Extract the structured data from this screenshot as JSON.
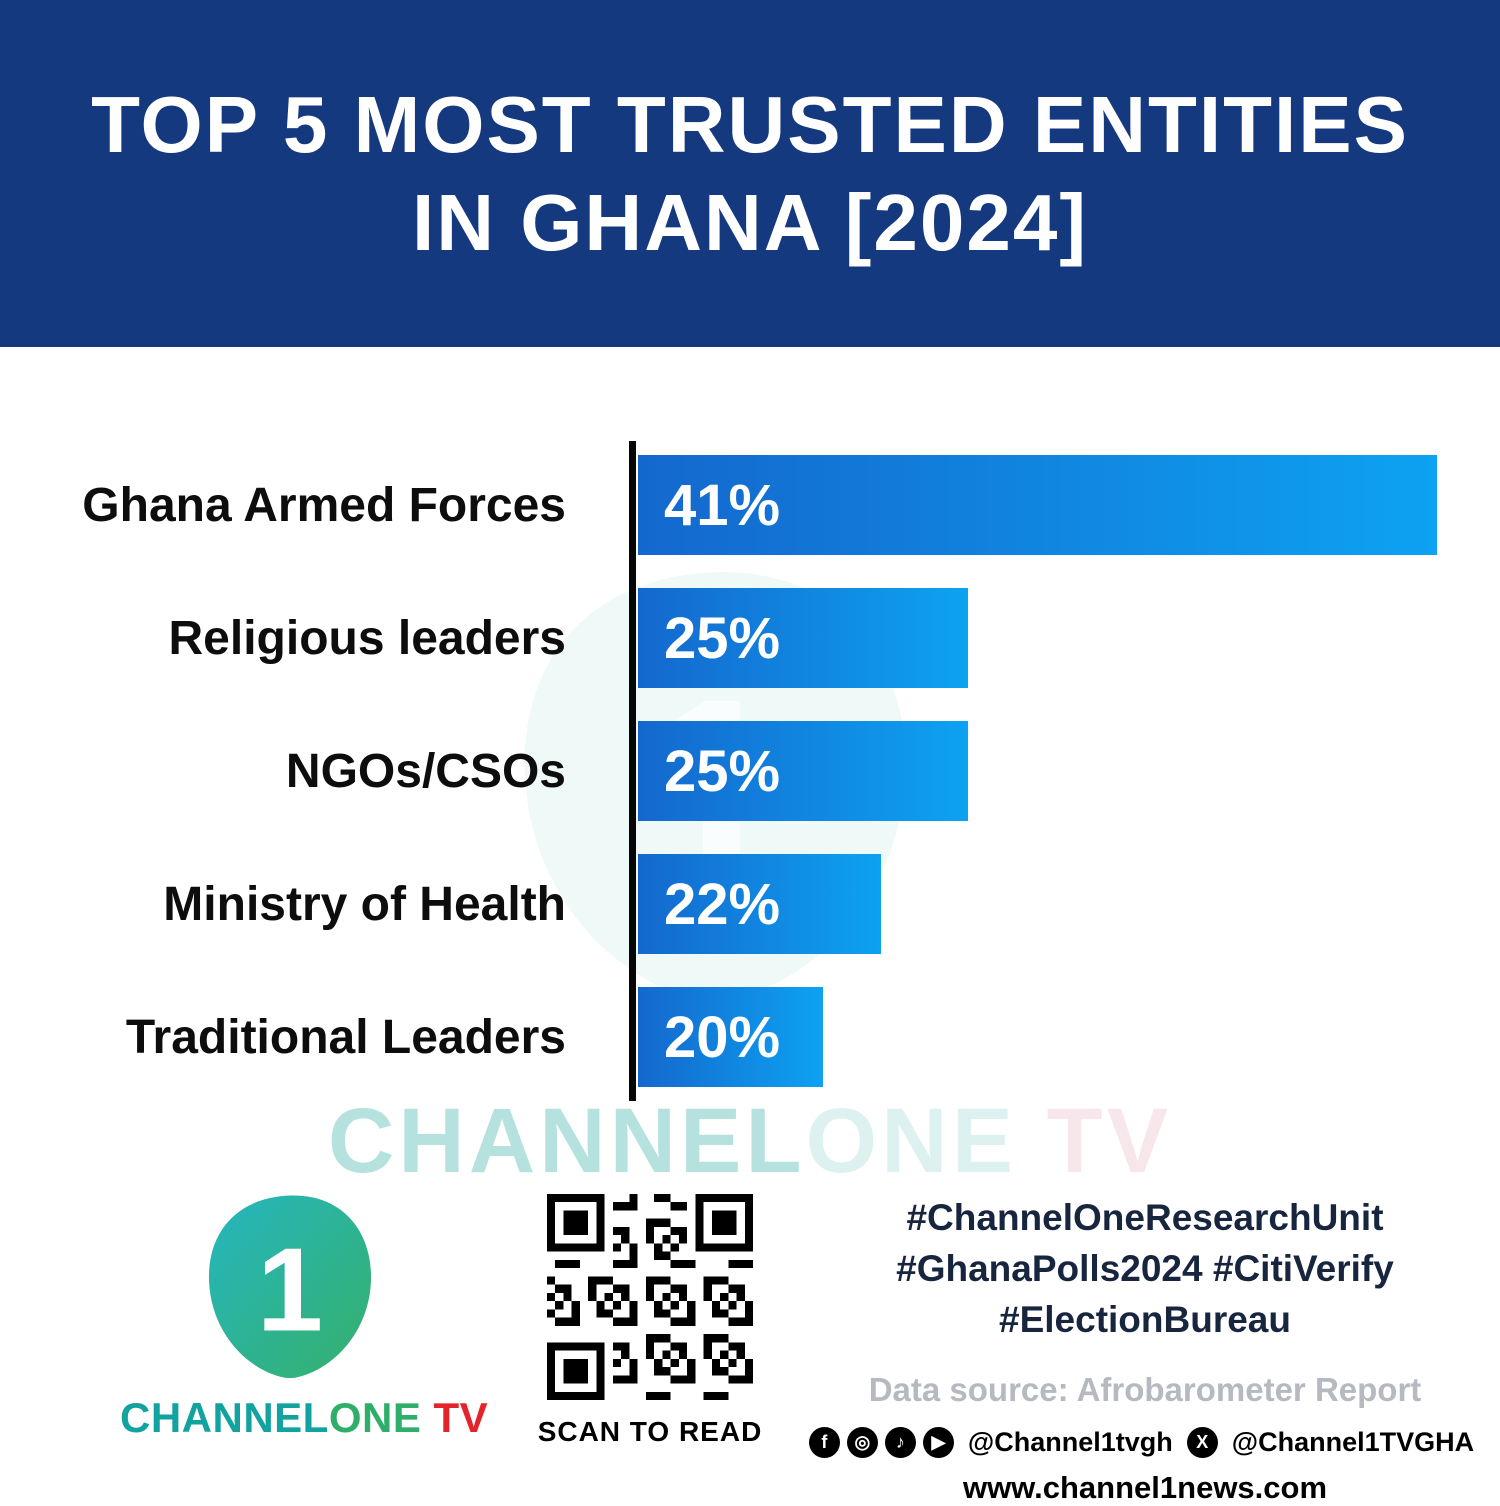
{
  "title": {
    "line1": "TOP 5 MOST TRUSTED ENTITIES",
    "line2": "IN GHANA [2024]"
  },
  "chart_data": {
    "type": "bar",
    "orientation": "horizontal",
    "title": "Top 5 Most Trusted Entities in Ghana [2024]",
    "categories": [
      "Ghana Armed Forces",
      "Religious leaders",
      "NGOs/CSOs",
      "Ministry of Health",
      "Traditional Leaders"
    ],
    "values": [
      41,
      25,
      25,
      22,
      20
    ],
    "value_labels": [
      "41%",
      "25%",
      "25%",
      "22%",
      "20%"
    ],
    "xlim": [
      0,
      45
    ],
    "grid": false,
    "legend": false,
    "bar_display_pct_of_area": [
      92.7,
      38.3,
      38.3,
      28.2,
      21.5
    ],
    "bar_gradient": [
      "#1468cd",
      "#0da2f2"
    ]
  },
  "watermark": {
    "part1": "CHANNEL",
    "part2": "ONE",
    "part3": " TV"
  },
  "brand": {
    "channel": "CHANNEL",
    "one": "ONE",
    "tv": " TV",
    "numeral": "1",
    "teal": "#12a3a0",
    "green": "#2fae6a",
    "red": "#e3242b"
  },
  "qr": {
    "caption": "SCAN TO READ"
  },
  "footer": {
    "hashtags": [
      "#ChannelOneResearchUnit",
      "#GhanaPolls2024 #CitiVerify",
      "#ElectionBureau"
    ],
    "data_source": "Data source: Afrobarometer Report",
    "handle_main": "@Channel1tvgh",
    "handle_x": "@Channel1TVGHA",
    "website": "www.channel1news.com",
    "social_icons": [
      {
        "name": "facebook-icon",
        "glyph": "f"
      },
      {
        "name": "instagram-icon",
        "glyph": "◎"
      },
      {
        "name": "tiktok-icon",
        "glyph": "♪"
      },
      {
        "name": "youtube-icon",
        "glyph": "▶"
      },
      {
        "name": "x-icon",
        "glyph": "X"
      }
    ]
  },
  "colors": {
    "header_bg": "#15397f",
    "bar_start": "#1468cd",
    "bar_end": "#0da2f2",
    "axis": "#060606"
  }
}
